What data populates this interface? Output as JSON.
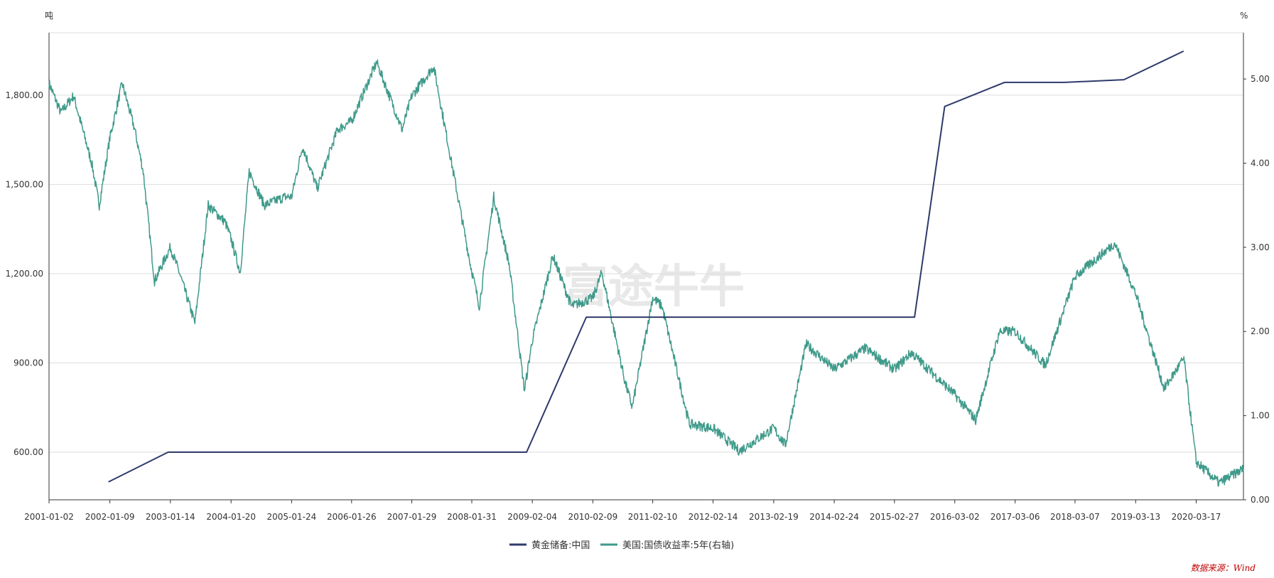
{
  "left_unit": "吨",
  "right_unit": "%",
  "watermark": "富途牛牛",
  "source": "数据来源：Wind",
  "colors": {
    "series1": "#2f3a6b",
    "series2": "#3f9a8a",
    "grid": "#dddddd",
    "axis": "#333333"
  },
  "chart_data": {
    "type": "line",
    "title": "",
    "x_ticks": [
      "2001-01-02",
      "2002-01-09",
      "2003-01-14",
      "2004-01-20",
      "2005-01-24",
      "2006-01-26",
      "2007-01-29",
      "2008-01-31",
      "2009-02-04",
      "2010-02-09",
      "2011-02-10",
      "2012-02-14",
      "2013-02-19",
      "2014-02-24",
      "2015-02-27",
      "2016-03-02",
      "2017-03-06",
      "2018-03-07",
      "2019-03-13",
      "2020-03-17"
    ],
    "x_range": [
      "2001-01-02",
      "2020-12-31"
    ],
    "y_left": {
      "unit": "吨",
      "ticks": [
        "600.00",
        "900.00",
        "1,200.00",
        "1,500.00",
        "1,800.00"
      ],
      "range": [
        440,
        2010
      ]
    },
    "y_right": {
      "unit": "%",
      "ticks": [
        "0.00",
        "1.00",
        "2.00",
        "3.00",
        "4.00",
        "5.00"
      ],
      "range": [
        0,
        5.55
      ]
    },
    "legend_position": "bottom",
    "series": [
      {
        "name": "黄金储备:中国",
        "axis": "left",
        "points": [
          [
            "2001-12-31",
            500
          ],
          [
            "2002-12-31",
            600
          ],
          [
            "2008-12-31",
            600
          ],
          [
            "2009-12-31",
            1054
          ],
          [
            "2015-06-30",
            1054
          ],
          [
            "2015-12-31",
            1762
          ],
          [
            "2016-12-31",
            1843
          ],
          [
            "2017-12-31",
            1843
          ],
          [
            "2018-12-31",
            1852
          ],
          [
            "2019-12-31",
            1948
          ]
        ]
      },
      {
        "name": "美国:国债收益率:5年(右轴)",
        "axis": "right",
        "points": [
          [
            "2001-01-02",
            4.95
          ],
          [
            "2001-03-15",
            4.6
          ],
          [
            "2001-06-01",
            4.8
          ],
          [
            "2001-09-20",
            4.0
          ],
          [
            "2001-11-05",
            3.5
          ],
          [
            "2002-01-09",
            4.3
          ],
          [
            "2002-03-25",
            4.95
          ],
          [
            "2002-06-10",
            4.4
          ],
          [
            "2002-08-01",
            3.9
          ],
          [
            "2002-10-09",
            2.6
          ],
          [
            "2003-01-14",
            3.0
          ],
          [
            "2003-03-10",
            2.7
          ],
          [
            "2003-06-13",
            2.1
          ],
          [
            "2003-09-02",
            3.5
          ],
          [
            "2003-12-15",
            3.3
          ],
          [
            "2004-01-20",
            3.1
          ],
          [
            "2004-03-16",
            2.7
          ],
          [
            "2004-05-10",
            3.9
          ],
          [
            "2004-08-10",
            3.5
          ],
          [
            "2004-12-15",
            3.6
          ],
          [
            "2005-01-24",
            3.6
          ],
          [
            "2005-04-01",
            4.2
          ],
          [
            "2005-06-30",
            3.7
          ],
          [
            "2005-11-01",
            4.4
          ],
          [
            "2006-01-26",
            4.5
          ],
          [
            "2006-06-28",
            5.2
          ],
          [
            "2006-12-01",
            4.4
          ],
          [
            "2007-01-29",
            4.8
          ],
          [
            "2007-06-12",
            5.15
          ],
          [
            "2007-09-01",
            4.3
          ],
          [
            "2008-01-22",
            2.8
          ],
          [
            "2008-03-17",
            2.3
          ],
          [
            "2008-06-13",
            3.6
          ],
          [
            "2008-09-15",
            2.8
          ],
          [
            "2008-12-18",
            1.3
          ],
          [
            "2009-02-04",
            1.9
          ],
          [
            "2009-06-10",
            2.9
          ],
          [
            "2009-10-01",
            2.3
          ],
          [
            "2010-02-09",
            2.4
          ],
          [
            "2010-04-05",
            2.7
          ],
          [
            "2010-08-25",
            1.4
          ],
          [
            "2010-10-08",
            1.1
          ],
          [
            "2011-02-10",
            2.4
          ],
          [
            "2011-04-08",
            2.3
          ],
          [
            "2011-09-22",
            0.9
          ],
          [
            "2012-02-14",
            0.85
          ],
          [
            "2012-07-24",
            0.58
          ],
          [
            "2013-02-19",
            0.85
          ],
          [
            "2013-05-01",
            0.65
          ],
          [
            "2013-09-05",
            1.85
          ],
          [
            "2014-02-24",
            1.55
          ],
          [
            "2014-09-01",
            1.8
          ],
          [
            "2015-02-27",
            1.55
          ],
          [
            "2015-06-10",
            1.75
          ],
          [
            "2016-03-02",
            1.25
          ],
          [
            "2016-07-08",
            0.95
          ],
          [
            "2016-11-30",
            2.0
          ],
          [
            "2017-03-06",
            2.0
          ],
          [
            "2017-09-07",
            1.6
          ],
          [
            "2018-03-07",
            2.65
          ],
          [
            "2018-11-05",
            3.05
          ],
          [
            "2019-03-13",
            2.45
          ],
          [
            "2019-09-03",
            1.32
          ],
          [
            "2020-01-02",
            1.68
          ],
          [
            "2020-03-17",
            0.45
          ],
          [
            "2020-08-04",
            0.2
          ],
          [
            "2020-12-31",
            0.37
          ]
        ]
      }
    ]
  }
}
